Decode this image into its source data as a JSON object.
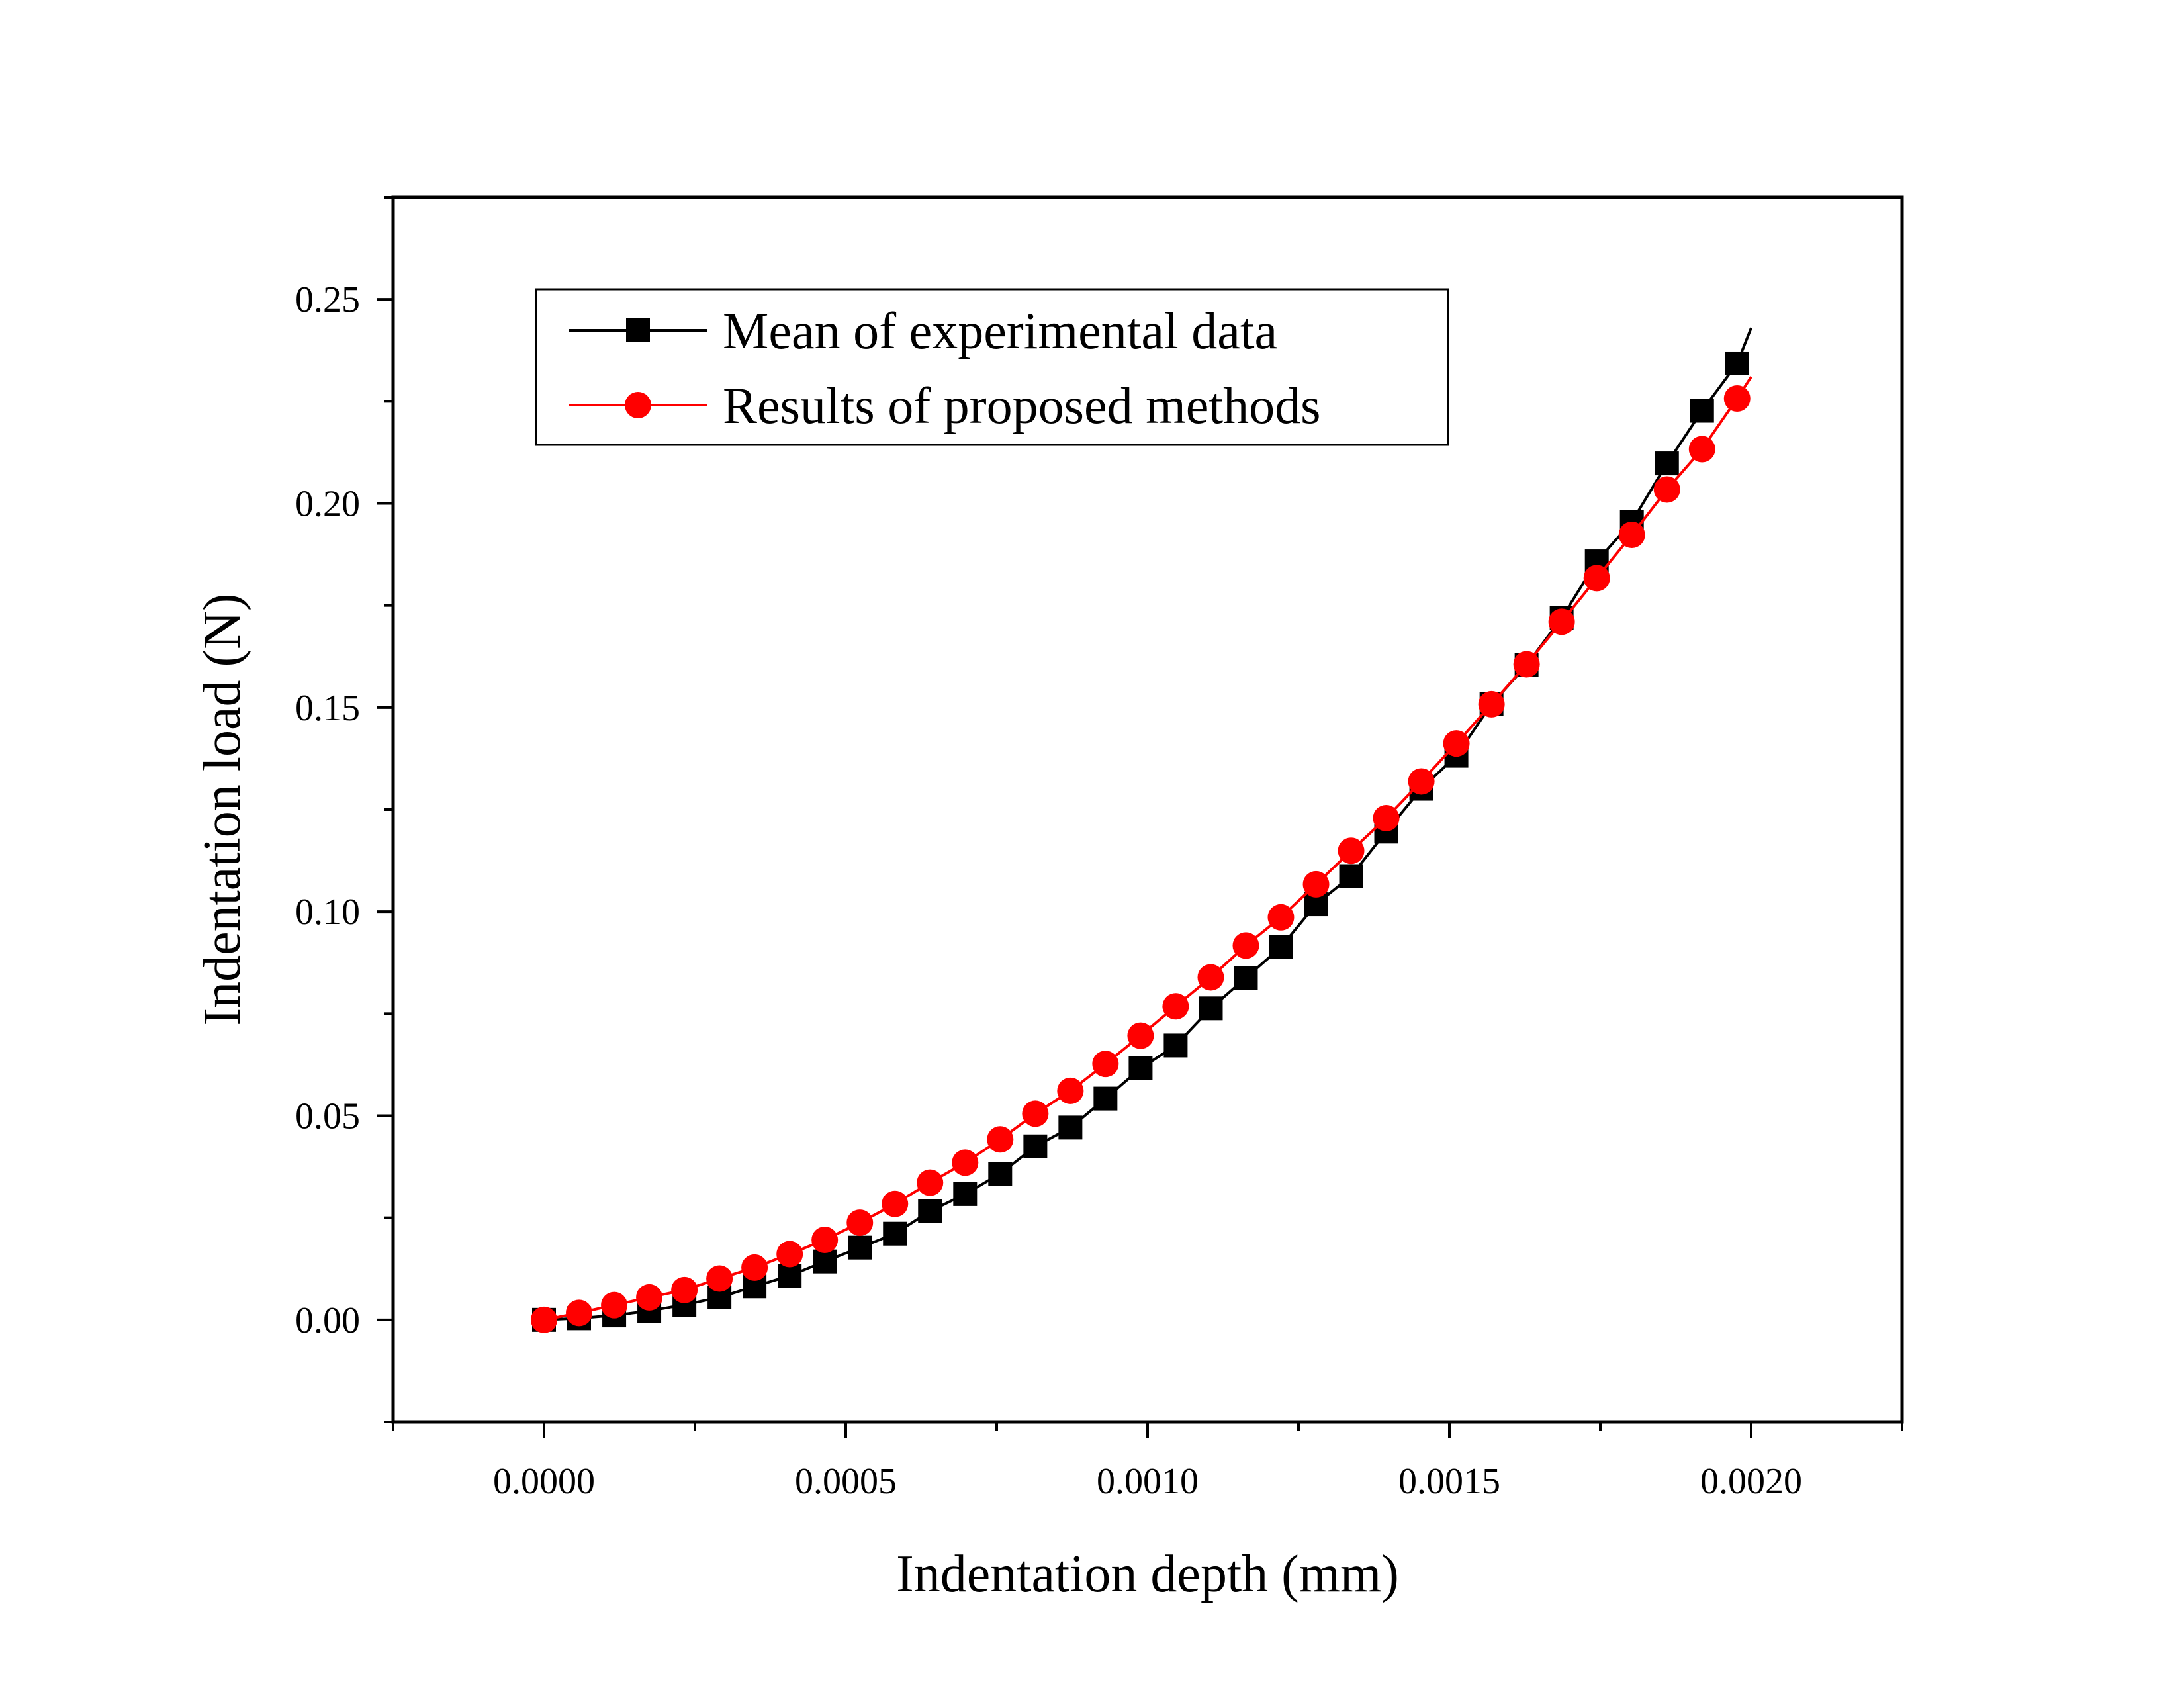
{
  "chart_data": {
    "type": "line",
    "xlabel": "Indentation depth (mm)",
    "ylabel": "Indentation load (N)",
    "xlim": [
      -0.00025,
      0.00225
    ],
    "ylim": [
      -0.025,
      0.275
    ],
    "x_ticks": [
      0.0,
      0.0005,
      0.001,
      0.0015,
      0.002
    ],
    "x_tick_labels": [
      "0.0000",
      "0.0005",
      "0.0010",
      "0.0015",
      "0.0020"
    ],
    "y_ticks": [
      0.0,
      0.05,
      0.1,
      0.15,
      0.2,
      0.25
    ],
    "y_tick_labels": [
      "0.00",
      "0.05",
      "0.10",
      "0.15",
      "0.20",
      "0.25"
    ],
    "grid": false,
    "legend_position": "top-left",
    "series": [
      {
        "name": "Mean of experimental data",
        "color": "#000000",
        "marker": "square",
        "line_end": [
          0.002,
          0.243
        ],
        "x": [
          0.0,
          5.81e-05,
          0.0001163,
          0.0001744,
          0.0002326,
          0.0002907,
          0.0003488,
          0.000407,
          0.0004651,
          0.0005233,
          0.0005814,
          0.0006395,
          0.0006977,
          0.0007558,
          0.000814,
          0.0008721,
          0.0009302,
          0.0009884,
          0.0010465,
          0.0011047,
          0.0011628,
          0.0012209,
          0.0012791,
          0.0013372,
          0.0013953,
          0.0014535,
          0.0015116,
          0.0015698,
          0.0016279,
          0.001686,
          0.0017442,
          0.0018023,
          0.0018605,
          0.0019186,
          0.0019767
        ],
        "y": [
          0.0,
          0.0004,
          0.0011,
          0.0022,
          0.0037,
          0.0055,
          0.0082,
          0.0108,
          0.0143,
          0.0177,
          0.0211,
          0.0266,
          0.0308,
          0.0358,
          0.0425,
          0.0471,
          0.0542,
          0.0616,
          0.0672,
          0.0763,
          0.0838,
          0.0913,
          0.1018,
          0.1087,
          0.1196,
          0.1301,
          0.1382,
          0.1508,
          0.1604,
          0.1719,
          0.1858,
          0.1955,
          0.2098,
          0.2227,
          0.2343
        ]
      },
      {
        "name": "Results of proposed methods",
        "color": "#ff0000",
        "marker": "circle",
        "line_end": [
          0.002,
          0.231
        ],
        "x": [
          0.0,
          5.81e-05,
          0.0001163,
          0.0001744,
          0.0002326,
          0.0002907,
          0.0003488,
          0.000407,
          0.0004651,
          0.0005233,
          0.0005814,
          0.0006395,
          0.0006977,
          0.0007558,
          0.000814,
          0.0008721,
          0.0009302,
          0.0009884,
          0.0010465,
          0.0011047,
          0.0011628,
          0.0012209,
          0.0012791,
          0.0013372,
          0.0013953,
          0.0014535,
          0.0015116,
          0.0015698,
          0.0016279,
          0.001686,
          0.0017442,
          0.0018023,
          0.0018605,
          0.0019186,
          0.0019767
        ],
        "y": [
          0.0,
          0.0017,
          0.0036,
          0.0055,
          0.0073,
          0.0101,
          0.0128,
          0.0161,
          0.0196,
          0.0238,
          0.0284,
          0.0336,
          0.0385,
          0.0442,
          0.0505,
          0.0561,
          0.0627,
          0.0696,
          0.0768,
          0.0839,
          0.0917,
          0.0986,
          0.1067,
          0.1149,
          0.1229,
          0.1319,
          0.1412,
          0.1508,
          0.1606,
          0.171,
          0.1817,
          0.1923,
          0.2034,
          0.2133,
          0.2257
        ]
      }
    ]
  }
}
